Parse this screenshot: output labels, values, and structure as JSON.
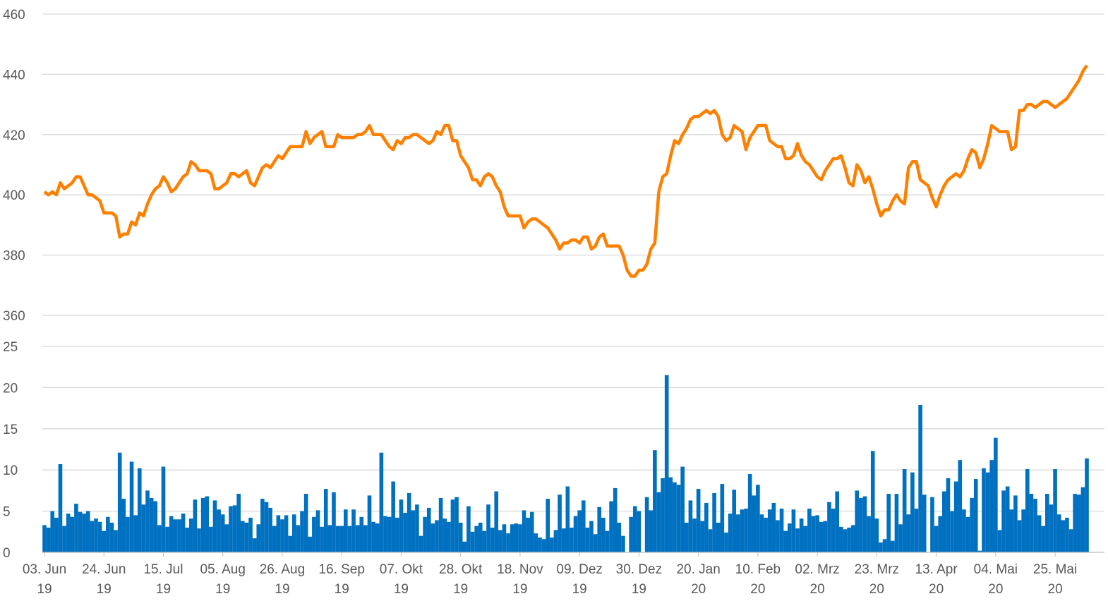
{
  "chart_data": [
    {
      "type": "line",
      "color": "#ff8000",
      "ylim": [
        360,
        460
      ],
      "yticks": [
        360,
        380,
        400,
        420,
        440,
        460
      ],
      "grid": true,
      "values": [
        401,
        400,
        401,
        400,
        404,
        402,
        403,
        404,
        406,
        406,
        403,
        400,
        400,
        399,
        398,
        394,
        394,
        394,
        393,
        386,
        387,
        387,
        391,
        390,
        394,
        393,
        397,
        400,
        402,
        403,
        406,
        404,
        401,
        402,
        404,
        406,
        407,
        411,
        410,
        408,
        408,
        408,
        407,
        402,
        402,
        403,
        404,
        407,
        407,
        406,
        407,
        408,
        404,
        403,
        406,
        409,
        410,
        409,
        411,
        413,
        412,
        414,
        416,
        416,
        416,
        416,
        421,
        417,
        419,
        420,
        421,
        416,
        416,
        416,
        420,
        419,
        419,
        419,
        419,
        420,
        420,
        421,
        423,
        420,
        420,
        420,
        418,
        416,
        415,
        418,
        417,
        419,
        419,
        420,
        420,
        419,
        418,
        417,
        418,
        421,
        420,
        423,
        423,
        418,
        418,
        413,
        411,
        409,
        405,
        405,
        403,
        406,
        407,
        406,
        403,
        401,
        396,
        393,
        393,
        393,
        393,
        389,
        391,
        392,
        392,
        391,
        390,
        389,
        387,
        385,
        382,
        384,
        384,
        385,
        385,
        384,
        386,
        386,
        382,
        383,
        386,
        387,
        383,
        383,
        383,
        383,
        380,
        375,
        373,
        373,
        375,
        375,
        377,
        382,
        384,
        401,
        406,
        407,
        413,
        418,
        417,
        420,
        422,
        425,
        426,
        426,
        427,
        428,
        427,
        428,
        426,
        420,
        418,
        419,
        423,
        422,
        421,
        415,
        419,
        421,
        423,
        423,
        423,
        418,
        417,
        416,
        416,
        412,
        412,
        413,
        417,
        413,
        411,
        410,
        408,
        406,
        405,
        408,
        410,
        412,
        412,
        413,
        409,
        404,
        403,
        410,
        408,
        404,
        406,
        402,
        397,
        393,
        395,
        395,
        398,
        400,
        398,
        397,
        409,
        411,
        411,
        405,
        404,
        403,
        399,
        396,
        400,
        403,
        405,
        406,
        407,
        406,
        408,
        412,
        415,
        414,
        409,
        412,
        417,
        423,
        422,
        421,
        421,
        421,
        415,
        416,
        428,
        428,
        430,
        430,
        429,
        430,
        431,
        431,
        430,
        429,
        430,
        431,
        432,
        434,
        436,
        438,
        441,
        443
      ]
    },
    {
      "type": "bar",
      "color": "#0070c0",
      "ylim": [
        0,
        25
      ],
      "yticks": [
        0,
        5,
        10,
        15,
        20,
        25
      ],
      "grid": true,
      "values": [
        3.3,
        3,
        5,
        4.2,
        10.7,
        3.2,
        4.7,
        4.3,
        5.9,
        4.9,
        4.7,
        5,
        3.8,
        4.1,
        3.7,
        2.6,
        4.3,
        3.6,
        2.7,
        12.1,
        6.5,
        4.3,
        11,
        4.5,
        10.2,
        5.8,
        7.5,
        6.6,
        6.2,
        3.3,
        10.4,
        3.1,
        4.4,
        4,
        4,
        4.7,
        3,
        4.1,
        6.4,
        2.9,
        6.6,
        6.8,
        3.1,
        6.3,
        5.2,
        4.6,
        3.4,
        5.6,
        5.7,
        7.1,
        3.8,
        3.6,
        4.2,
        1.7,
        3.4,
        6.5,
        6.1,
        5.4,
        3.2,
        4.5,
        4,
        4.5,
        2,
        4.6,
        3.3,
        5,
        7.1,
        1.9,
        4.3,
        5.1,
        3.1,
        7.7,
        3.3,
        7.3,
        3.2,
        3.2,
        5.2,
        3.2,
        5.2,
        3.3,
        4.3,
        3.3,
        6.9,
        3.7,
        3.5,
        12.1,
        4.4,
        4.3,
        8.6,
        4.2,
        6.4,
        4.8,
        7.2,
        5.1,
        5.8,
        2,
        4.3,
        5.4,
        3.5,
        3.9,
        6.6,
        4.1,
        3.7,
        6.4,
        6.7,
        3.6,
        1.3,
        5.6,
        2.5,
        3.2,
        3.6,
        2.6,
        5.8,
        3,
        7.4,
        2.7,
        3.4,
        2.3,
        3.4,
        3.5,
        3.4,
        5.1,
        4.2,
        4.9,
        2.3,
        1.8,
        1.6,
        6.5,
        1.8,
        2.7,
        7,
        2.9,
        8,
        3,
        4.4,
        5.1,
        6.3,
        3,
        3.8,
        2.2,
        5.5,
        4.2,
        2.6,
        6.2,
        7.8,
        3.6,
        2,
        null,
        4.3,
        5.6,
        5,
        null,
        6.7,
        5.1,
        12.4,
        7.3,
        9,
        21.5,
        9.1,
        8.5,
        8.2,
        10.4,
        3.6,
        6.3,
        4.1,
        7.7,
        3.8,
        6,
        2.8,
        7.2,
        3.6,
        8.3,
        2.4,
        4.7,
        7.6,
        4.6,
        5.2,
        5.3,
        9.5,
        6.9,
        8.2,
        4.6,
        4.2,
        5.2,
        6,
        3.9,
        5.3,
        2.6,
        3.5,
        5.2,
        2.9,
        4.1,
        3.2,
        5.3,
        4.4,
        4.5,
        3.7,
        3.8,
        6.1,
        5.3,
        7.4,
        3.1,
        2.8,
        3,
        3.3,
        7.5,
        6.6,
        6.8,
        4.4,
        12.3,
        4.1,
        1.2,
        1.6,
        7.1,
        1.4,
        7.1,
        3.4,
        10.1,
        4.6,
        9.7,
        5.3,
        17.9,
        7,
        null,
        6.7,
        3.2,
        4.4,
        7.4,
        9,
        5,
        8.6,
        11.2,
        5.2,
        4.3,
        6.6,
        8.9,
        0.2,
        10.2,
        9.7,
        11.2,
        13.9,
        2.7,
        7.5,
        8,
        5.2,
        6.9,
        3.9,
        5.2,
        10.1,
        7.1,
        6.5,
        4.5,
        3.2,
        7.1,
        5.8,
        10.1,
        4.6,
        3.9,
        4.2,
        2.8,
        7.1,
        7,
        7.9,
        11.4
      ],
      "categories": [
        "03. Jun 19",
        null,
        null,
        null,
        null,
        null,
        null,
        null,
        null,
        null,
        null,
        null,
        null,
        null,
        null,
        "24. Jun 19",
        null,
        null,
        null,
        null,
        null,
        null,
        null,
        null,
        null,
        null,
        null,
        null,
        null,
        null,
        "15. Jul 19",
        null,
        null,
        null,
        null,
        null,
        null,
        null,
        null,
        null,
        null,
        null,
        null,
        null,
        null,
        "05. Aug 19",
        null,
        null,
        null,
        null,
        null,
        null,
        null,
        null,
        null,
        null,
        null,
        null,
        null,
        null,
        "26. Aug 19",
        null,
        null,
        null,
        null,
        null,
        null,
        null,
        null,
        null,
        null,
        null,
        null,
        null,
        null,
        "16. Sep 19",
        null,
        null,
        null,
        null,
        null,
        null,
        null,
        null,
        null,
        null,
        null,
        null,
        null,
        null,
        "07. Okt 19",
        null,
        null,
        null,
        null,
        null,
        null,
        null,
        null,
        null,
        null,
        null,
        null,
        null,
        null,
        "28. Okt 19",
        null,
        null,
        null,
        null,
        null,
        null,
        null,
        null,
        null,
        null,
        null,
        null,
        null,
        null,
        "18. Nov 19",
        null,
        null,
        null,
        null,
        null,
        null,
        null,
        null,
        null,
        null,
        null,
        null,
        null,
        null,
        "09. Dez 19",
        null,
        null,
        null,
        null,
        null,
        null,
        null,
        null,
        null,
        null,
        null,
        null,
        null,
        null,
        "30. Dez 19",
        null,
        null,
        null,
        null,
        null,
        null,
        null,
        null,
        null,
        null,
        null,
        null,
        null,
        null,
        "20. Jan 20",
        null,
        null,
        null,
        null,
        null,
        null,
        null,
        null,
        null,
        null,
        null,
        null,
        null,
        null,
        "10. Feb 20",
        null,
        null,
        null,
        null,
        null,
        null,
        null,
        null,
        null,
        null,
        null,
        null,
        null,
        null,
        "02. Mrz 20",
        null,
        null,
        null,
        null,
        null,
        null,
        null,
        null,
        null,
        null,
        null,
        null,
        null,
        null,
        "23. Mrz 20",
        null,
        null,
        null,
        null,
        null,
        null,
        null,
        null,
        null,
        null,
        null,
        null,
        null,
        null,
        "13. Apr 20",
        null,
        null,
        null,
        null,
        null,
        null,
        null,
        null,
        null,
        null,
        null,
        null,
        null,
        null,
        "04. Mai 20",
        null,
        null,
        null,
        null,
        null,
        null,
        null,
        null,
        null,
        null,
        null,
        null,
        null,
        null,
        "25. Mai 20",
        null,
        null,
        null,
        null,
        null,
        null,
        null,
        null
      ]
    }
  ]
}
